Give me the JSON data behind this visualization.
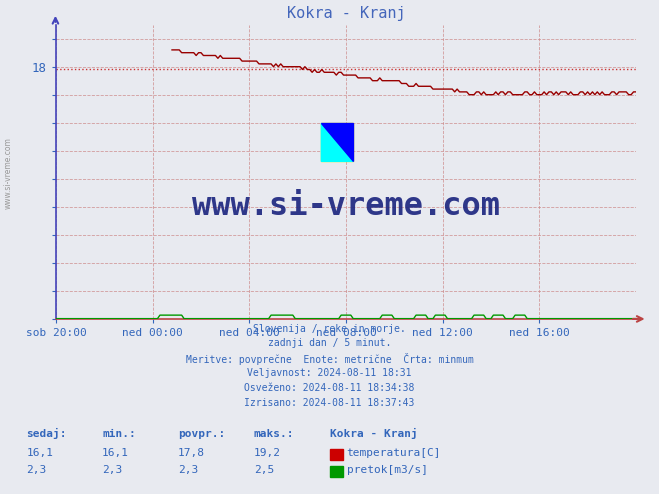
{
  "title": "Kokra - Kranj",
  "title_color": "#4466bb",
  "bg_color": "#e8eaf0",
  "x_labels": [
    "sob 20:00",
    "ned 00:00",
    "ned 04:00",
    "ned 08:00",
    "ned 12:00",
    "ned 16:00"
  ],
  "ylim": [
    0,
    21
  ],
  "yticks_labeled": [
    18
  ],
  "yticks_all": [
    0,
    2,
    4,
    6,
    8,
    10,
    12,
    14,
    16,
    18,
    20
  ],
  "temp_color": "#990000",
  "flow_color": "#009900",
  "avg_line_color": "#cc3333",
  "avg_line_value": 17.8,
  "avg_line_style": "dotted",
  "watermark_text": "www.si-vreme.com",
  "watermark_color": "#1a237e",
  "footer_lines": [
    "Slovenija / reke in morje.",
    "zadnji dan / 5 minut.",
    "Meritve: povprečne  Enote: metrične  Črta: minmum",
    "Veljavnost: 2024-08-11 18:31",
    "Osveženo: 2024-08-11 18:34:38",
    "Izrisano: 2024-08-11 18:37:43"
  ],
  "footer_color": "#3366bb",
  "table_headers": [
    "sedaj:",
    "min.:",
    "povpr.:",
    "maks.:"
  ],
  "table_values_temp": [
    "16,1",
    "16,1",
    "17,8",
    "19,2"
  ],
  "table_values_flow": [
    "2,3",
    "2,3",
    "2,3",
    "2,5"
  ],
  "table_label": "Kokra - Kranj",
  "table_legend_temp": "temperatura[C]",
  "table_legend_flow": "pretok[m3/s]",
  "grid_color": "#cc8888",
  "left_axis_color": "#4444bb",
  "bottom_axis_color": "#bb4444",
  "sidebar_text": "www.si-vreme.com",
  "sidebar_color": "#999999"
}
